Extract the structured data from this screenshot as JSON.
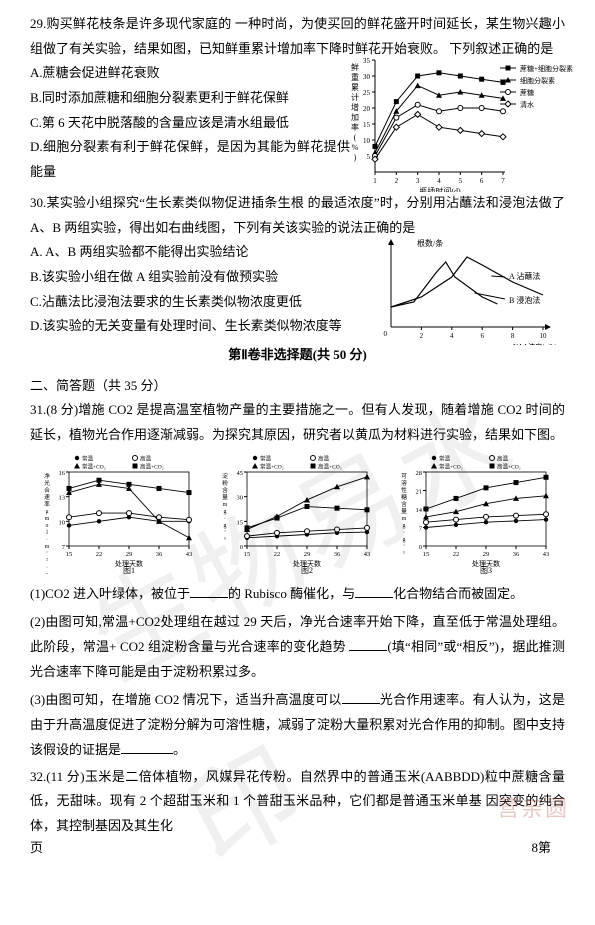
{
  "q29": {
    "stem": "29.购买鲜花枝条是许多现代家庭的 一种时尚，为使买回的鲜花盛开时间延长，某生物兴趣小组做了有关实验，结果如图，已知鲜重累计增加率下降时鲜花开始衰败。 下列叙述正确的是",
    "optA": "A.蔗糖会促进鲜花衰败",
    "optB": "B.同时添加蔗糖和细胞分裂素更利于鲜花保鲜",
    "optC": "C.第 6 天花中脱落酸的含量应该是清水组最低",
    "optD": "D.细胞分裂素有利于鲜花保鲜，是因为其能为鲜花提供能量",
    "chart": {
      "ylabel": "鲜重累计增加率(%)",
      "xlabel": "瓶插时间(d)",
      "ylim": [
        0,
        35
      ],
      "yticks": [
        5,
        10,
        15,
        20,
        25,
        30,
        35
      ],
      "xticks": [
        1,
        2,
        3,
        4,
        5,
        6,
        7
      ],
      "series": [
        {
          "name": "蔗糖+细胞分裂素",
          "marker": "square",
          "color": "#000",
          "points": [
            [
              1,
              8
            ],
            [
              2,
              22
            ],
            [
              3,
              30
            ],
            [
              4,
              31
            ],
            [
              5,
              30
            ],
            [
              6,
              29
            ],
            [
              7,
              28
            ]
          ]
        },
        {
          "name": "细胞分裂素",
          "marker": "triangle",
          "color": "#000",
          "points": [
            [
              1,
              6
            ],
            [
              2,
              19
            ],
            [
              3,
              27
            ],
            [
              4,
              24
            ],
            [
              5,
              25
            ],
            [
              6,
              24
            ],
            [
              7,
              23
            ]
          ]
        },
        {
          "name": "蔗糖",
          "marker": "circle",
          "color": "#000",
          "points": [
            [
              1,
              5
            ],
            [
              2,
              17
            ],
            [
              3,
              21
            ],
            [
              4,
              19
            ],
            [
              5,
              20
            ],
            [
              6,
              20
            ],
            [
              7,
              19
            ]
          ]
        },
        {
          "name": "清水",
          "marker": "diamond",
          "color": "#000",
          "points": [
            [
              1,
              4
            ],
            [
              2,
              14
            ],
            [
              3,
              18
            ],
            [
              4,
              14
            ],
            [
              5,
              13
            ],
            [
              6,
              12
            ],
            [
              7,
              11
            ]
          ]
        }
      ],
      "legend_items": [
        "蔗糖+细胞分裂素",
        "细胞分裂素",
        "蔗糖",
        "清水"
      ],
      "bg": "#ffffff",
      "axis_color": "#000000"
    }
  },
  "q30": {
    "stem": "30.某实验小组探究“生长素类似物促进插条生根 的最适浓度”时，分别用沾蘸法和浸泡法做了 A、B 两组实验，得出如右曲线图，下列有关该实验的说法正确的是",
    "optA": "A. A、B 两组实验都不能得出实验结论",
    "optB": "B.该实验小组在做 A 组实验前没有做预实验",
    "optC": "C.沾蘸法比浸泡法要求的生长素类似物浓度更低",
    "optD": "D.该实验的无关变量有处理时间、生长素类似物浓度等",
    "chart": {
      "ylabel": "根数/条",
      "xlabel": "NAA浓度(g/L)",
      "series": [
        {
          "name": "A 沾蘸法",
          "points": [
            [
              0,
              2
            ],
            [
              2,
              3
            ],
            [
              4,
              5
            ],
            [
              5,
              7
            ],
            [
              6,
              6.2
            ],
            [
              8,
              4.5
            ],
            [
              10,
              3.2
            ]
          ]
        },
        {
          "name": "B 浸泡法",
          "points": [
            [
              0,
              2
            ],
            [
              1.5,
              2.5
            ],
            [
              3,
              5.5
            ],
            [
              3.6,
              6.5
            ],
            [
              4.2,
              5
            ],
            [
              6,
              3
            ],
            [
              7,
              2.3
            ]
          ]
        }
      ],
      "xticks": [
        "2",
        "4",
        "6",
        "8",
        "10"
      ],
      "bg": "#ffffff",
      "axis_color": "#000"
    }
  },
  "section2_title": "第Ⅱ卷非选择题(共 50 分)",
  "section2_sub": "二、简答题（共 35 分）",
  "q31": {
    "stem": "31.(8 分)增施 CO2 是提高温室植物产量的主要措施之一。但有人发现，随着增施 CO2 时间的延长，植物光合作用逐渐减弱。为探究其原因，研究者以黄瓜为材料进行实验，结果如下图。",
    "tri": {
      "legend": [
        "常温",
        "高温",
        "常温+CO₂",
        "高温+CO₂"
      ],
      "xlabel": "处理天数",
      "xticks": [
        "15",
        "22",
        "29",
        "36",
        "43"
      ],
      "captions": [
        "图1",
        "图2",
        "图3"
      ],
      "panels": [
        {
          "ylabel": "净光合速率μmol·m⁻²·s⁻¹",
          "ylim": [
            7,
            16
          ],
          "yticks": [
            7,
            10,
            13,
            16
          ],
          "series": [
            {
              "m": "dot",
              "pts": [
                [
                  15,
                  9.5
                ],
                [
                  22,
                  10
                ],
                [
                  29,
                  10.5
                ],
                [
                  36,
                  10
                ],
                [
                  43,
                  10
                ]
              ]
            },
            {
              "m": "circle",
              "pts": [
                [
                  15,
                  10.5
                ],
                [
                  22,
                  11
                ],
                [
                  29,
                  11
                ],
                [
                  36,
                  10.5
                ],
                [
                  43,
                  10.2
                ]
              ]
            },
            {
              "m": "tri",
              "pts": [
                [
                  15,
                  13.5
                ],
                [
                  22,
                  14.5
                ],
                [
                  29,
                  14
                ],
                [
                  36,
                  10
                ],
                [
                  43,
                  8
                ]
              ]
            },
            {
              "m": "square",
              "pts": [
                [
                  15,
                  14
                ],
                [
                  22,
                  15
                ],
                [
                  29,
                  14.5
                ],
                [
                  36,
                  14
                ],
                [
                  43,
                  13.5
                ]
              ]
            }
          ]
        },
        {
          "ylabel": "淀粉含量mg·g⁻¹",
          "ylim": [
            0,
            45
          ],
          "yticks": [
            0,
            15,
            30,
            45
          ],
          "series": [
            {
              "m": "dot",
              "pts": [
                [
                  15,
                  5
                ],
                [
                  22,
                  6
                ],
                [
                  29,
                  7
                ],
                [
                  36,
                  8
                ],
                [
                  43,
                  8.5
                ]
              ]
            },
            {
              "m": "circle",
              "pts": [
                [
                  15,
                  6
                ],
                [
                  22,
                  8
                ],
                [
                  29,
                  9
                ],
                [
                  36,
                  10
                ],
                [
                  43,
                  11
                ]
              ]
            },
            {
              "m": "tri",
              "pts": [
                [
                  15,
                  10
                ],
                [
                  22,
                  18
                ],
                [
                  29,
                  28
                ],
                [
                  36,
                  36
                ],
                [
                  43,
                  42
                ]
              ]
            },
            {
              "m": "square",
              "pts": [
                [
                  15,
                  11
                ],
                [
                  22,
                  17
                ],
                [
                  29,
                  24
                ],
                [
                  36,
                  23
                ],
                [
                  43,
                  22
                ]
              ]
            }
          ]
        },
        {
          "ylabel": "可溶性糖含量mg·g⁻¹",
          "ylim": [
            0,
            28
          ],
          "yticks": [
            0,
            7,
            14,
            21,
            28
          ],
          "series": [
            {
              "m": "dot",
              "pts": [
                [
                  15,
                  7
                ],
                [
                  22,
                  8
                ],
                [
                  29,
                  9
                ],
                [
                  36,
                  9.5
                ],
                [
                  43,
                  10
                ]
              ]
            },
            {
              "m": "circle",
              "pts": [
                [
                  15,
                  9
                ],
                [
                  22,
                  10
                ],
                [
                  29,
                  11
                ],
                [
                  36,
                  11.5
                ],
                [
                  43,
                  12
                ]
              ]
            },
            {
              "m": "tri",
              "pts": [
                [
                  15,
                  11
                ],
                [
                  22,
                  13
                ],
                [
                  29,
                  16
                ],
                [
                  36,
                  18
                ],
                [
                  43,
                  19
                ]
              ]
            },
            {
              "m": "square",
              "pts": [
                [
                  15,
                  14
                ],
                [
                  22,
                  18
                ],
                [
                  29,
                  22
                ],
                [
                  36,
                  24
                ],
                [
                  43,
                  26
                ]
              ]
            }
          ]
        }
      ]
    },
    "p1a": "(1)CO2 进入叶绿体，被位于",
    "p1b": "的 Rubisco 酶催化，与",
    "p1c": "化合物结合而被固定。",
    "p2a": "(2)由图可知,常温+CO2处理组在越过 29 天后，净光合速率开始下降，直至低于常温处理组。此阶段，常温+ CO2 组淀粉含量与光合速率的变化趋势",
    "p2b": "(填“相同”或“相反”)，据此推测光合速率下降可能是由于淀粉积累过多。",
    "p3a": "(3)由图可知，在增施 CO2 情况下，适当升高温度可以",
    "p3b": "光合作用速率。有人认为，这是由于升高温度促进了淀粉分解为可溶性糖，减弱了淀粉大量积累对光合作用的抑制。图中支持该假设的证据是",
    "p3c": "。"
  },
  "q32": "32.(11 分)玉米是二倍体植物，风媒异花传粉。自然界中的普通玉米(AABBDD)粒中蔗糖含量低，无甜味。现有 2 个超甜玉米和 1 个普甜玉米品种，它们都是普通玉米单基 因突变的纯合体，其控制基因及其生化",
  "footer_left": "页",
  "footer_right": "8第",
  "watermark": "生物易水印",
  "brand": "营亲圆"
}
